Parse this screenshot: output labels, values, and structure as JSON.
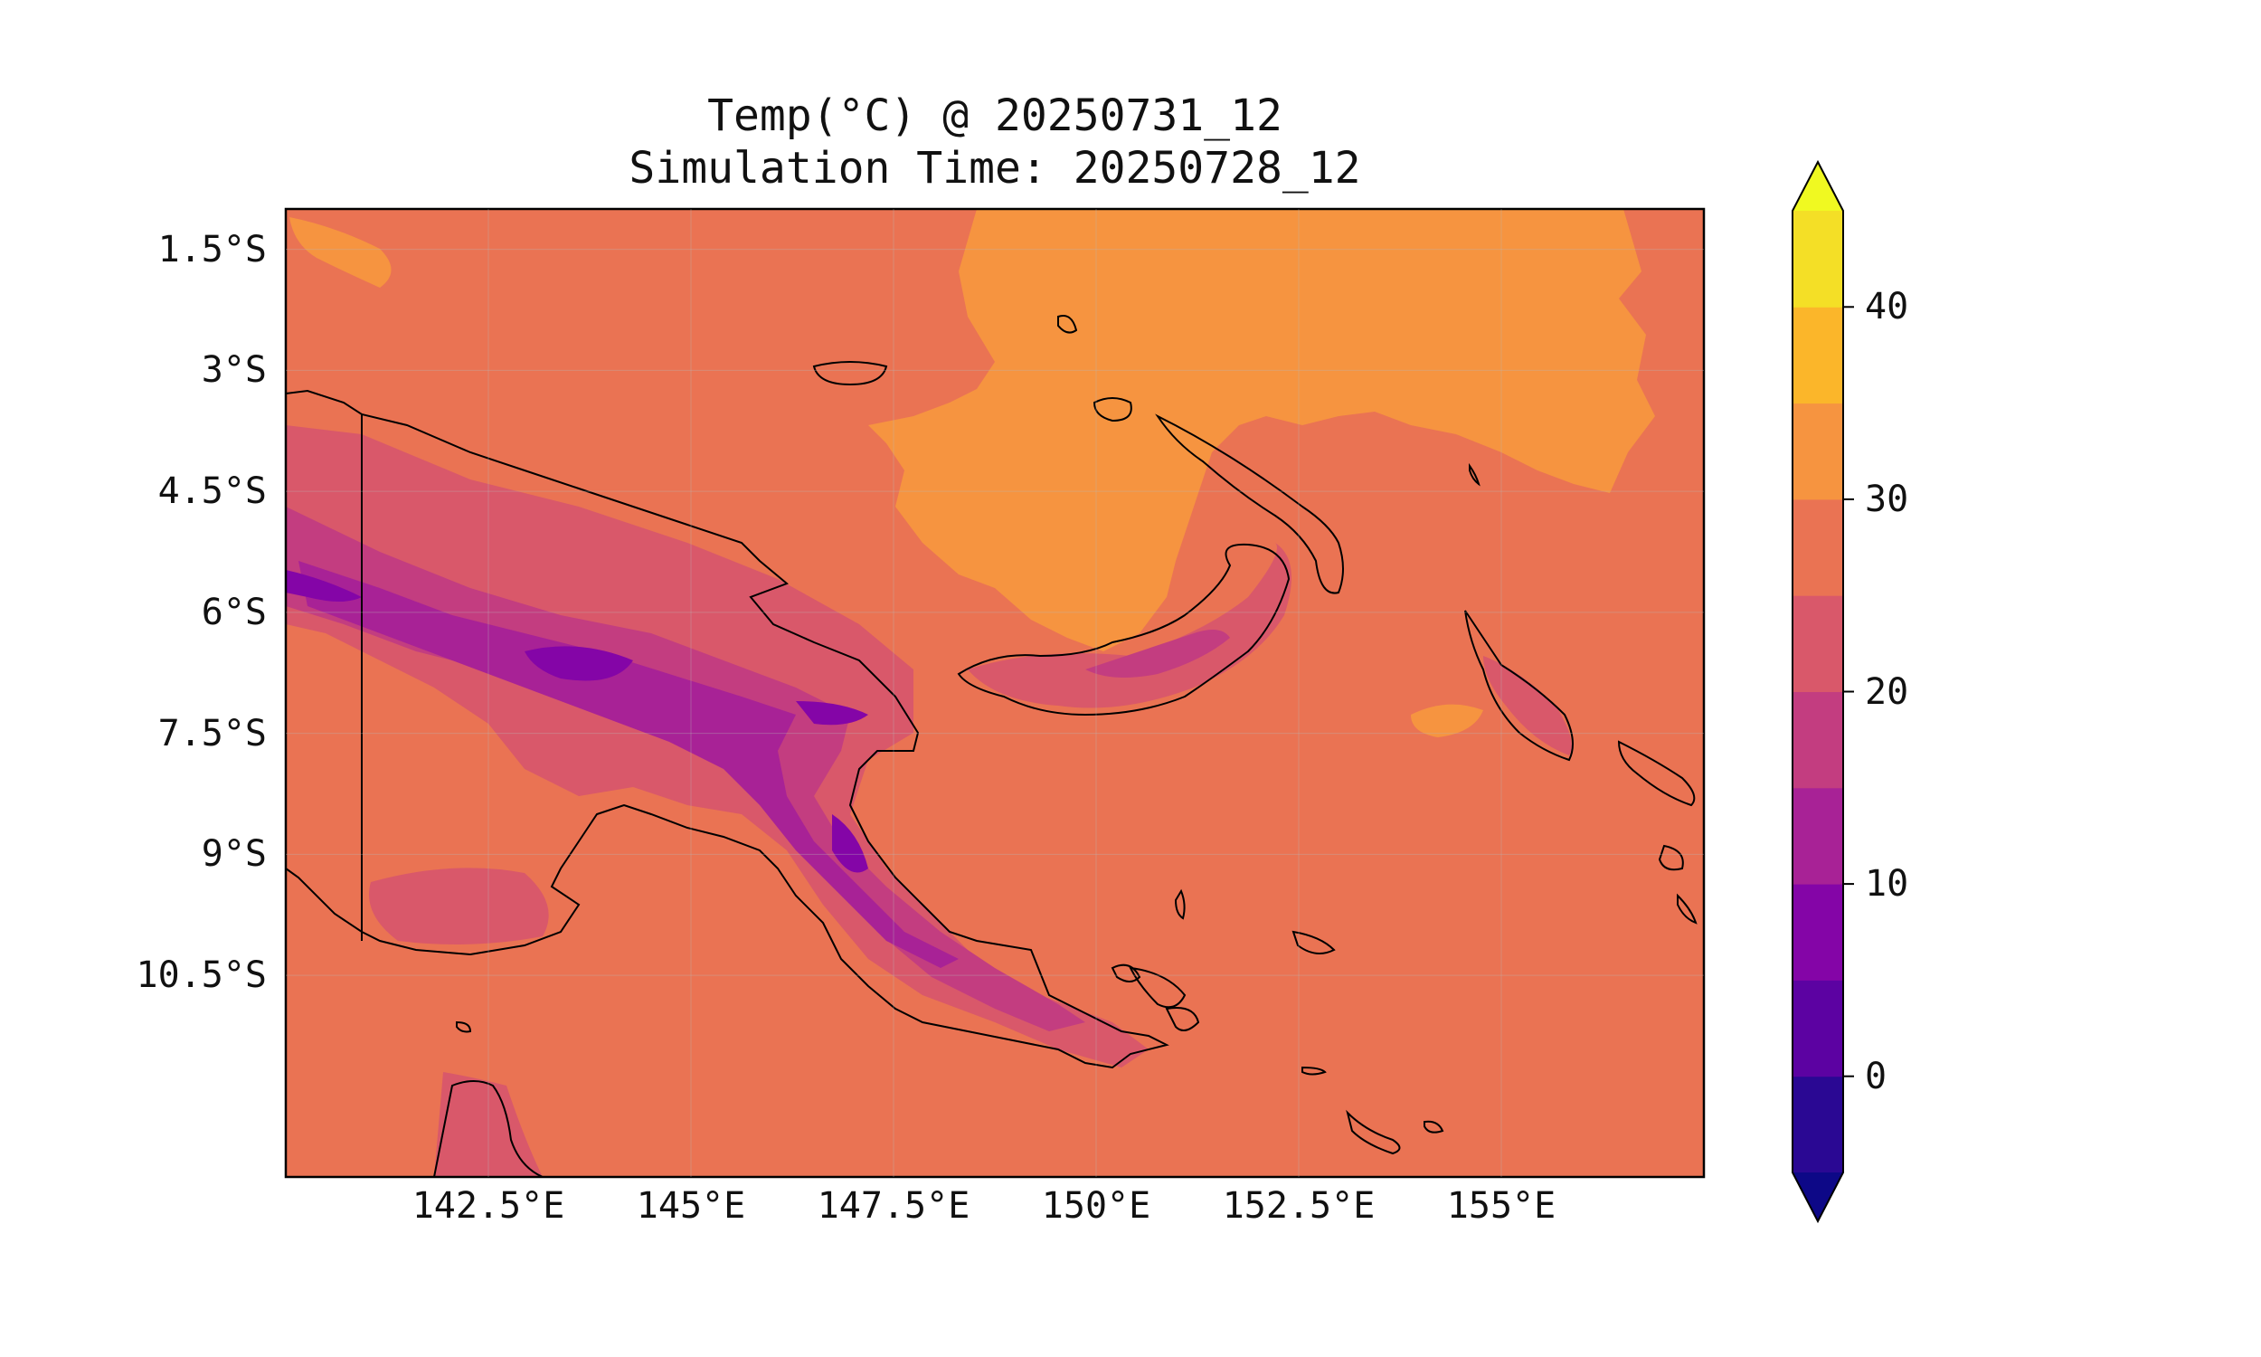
{
  "title": {
    "line1": "Temp(°C) @ 20250731_12",
    "line2": "Simulation Time: 20250728_12"
  },
  "map": {
    "projection": "PlateCarree",
    "lon_range": [
      140,
      157.5
    ],
    "lat_range": [
      -13,
      -1
    ],
    "gridlines": true,
    "coastlines": true,
    "country_border": true
  },
  "axes": {
    "y_ticks": [
      {
        "value": -1.5,
        "label": "1.5°S"
      },
      {
        "value": -3,
        "label": "3°S"
      },
      {
        "value": -4.5,
        "label": "4.5°S"
      },
      {
        "value": -6,
        "label": "6°S"
      },
      {
        "value": -7.5,
        "label": "7.5°S"
      },
      {
        "value": -9,
        "label": "9°S"
      },
      {
        "value": -10.5,
        "label": "10.5°S"
      }
    ],
    "x_ticks": [
      {
        "value": 142.5,
        "label": "142.5°E"
      },
      {
        "value": 145,
        "label": "145°E"
      },
      {
        "value": 147.5,
        "label": "147.5°E"
      },
      {
        "value": 150,
        "label": "150°E"
      },
      {
        "value": 152.5,
        "label": "152.5°E"
      },
      {
        "value": 155,
        "label": "155°E"
      }
    ]
  },
  "colorbar": {
    "levels": [
      -5,
      0,
      5,
      10,
      15,
      20,
      25,
      30,
      35,
      40,
      45
    ],
    "colors": [
      "#2a0893",
      "#5c02a2",
      "#8405a7",
      "#a82296",
      "#c33d80",
      "#d9586a",
      "#ea7353",
      "#f69440",
      "#fbb62a",
      "#f4df26"
    ],
    "under_color": "#0d0887",
    "over_color": "#f0f921",
    "extend": "both",
    "tick_labels": [
      {
        "value": 0,
        "label": "0"
      },
      {
        "value": 10,
        "label": "10"
      },
      {
        "value": 20,
        "label": "20"
      },
      {
        "value": 30,
        "label": "30"
      },
      {
        "value": 40,
        "label": "40"
      }
    ]
  },
  "field_colors": {
    "background": "#ea7353",
    "warm_sea": "#f69440",
    "highland_1": "#d9586a",
    "highland_2": "#c33d80",
    "highland_3": "#a82296",
    "highland_4": "#8405a7"
  }
}
